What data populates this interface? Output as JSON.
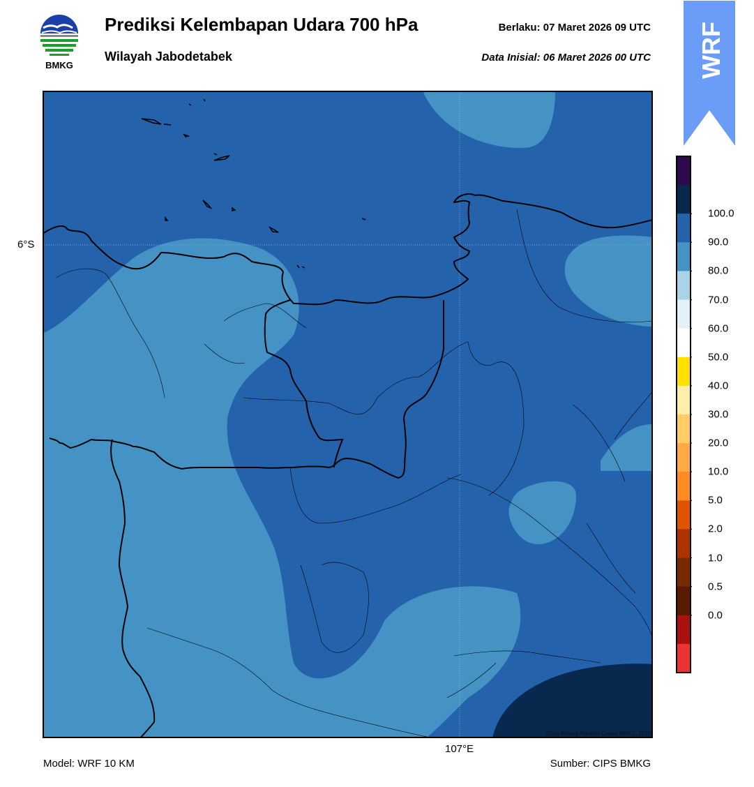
{
  "header": {
    "title": "Prediksi Kelembapan Udara 700 hPa",
    "subtitle": "Wilayah Jabodetabek",
    "valid_label": "Berlaku:  07 Maret 2026 09 UTC",
    "init_label": "Data Inisial:  06 Maret 2026 00 UTC"
  },
  "logo": {
    "text": "BMKG",
    "icon": "bmkg-logo"
  },
  "badge": {
    "text": "WRF",
    "color": "#6b9cf7"
  },
  "map": {
    "lat_label": "6°S",
    "lon_label": "107°E",
    "copyright": "©Sub Bidang Prediksi Cuaca BMKG, 2020"
  },
  "colorbar": {
    "ticks": [
      "100.0",
      "90.0",
      "80.0",
      "70.0",
      "60.0",
      "50.0",
      "40.0",
      "30.0",
      "20.0",
      "10.0",
      "5.0",
      "2.0",
      "1.0",
      "0.5",
      "0.0"
    ],
    "colors": [
      "#2d0a4e",
      "#08284d",
      "#2463ac",
      "#4493c4",
      "#a9d3e6",
      "#e4f1f8",
      "#ffffff",
      "#ffe000",
      "#ffeeaa",
      "#ffcc66",
      "#ffaa44",
      "#ff8c22",
      "#dd5500",
      "#aa3300",
      "#7a2a00",
      "#5a1a00",
      "#aa1111",
      "#ee3333"
    ]
  },
  "footer": {
    "model": "Model: WRF 10 KM",
    "source": "Sumber: CIPS BMKG"
  }
}
